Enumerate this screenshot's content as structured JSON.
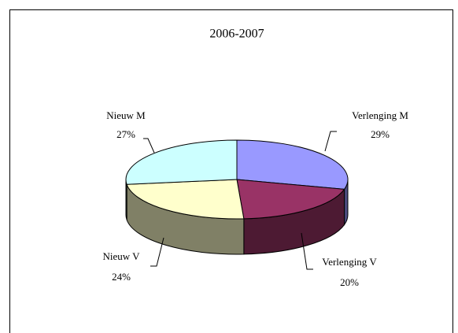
{
  "chart_data": {
    "type": "pie",
    "title": "2006-2007",
    "categories": [
      "Verlenging M",
      "Verlenging V",
      "Nieuw V",
      "Nieuw M"
    ],
    "values": [
      29,
      20,
      24,
      27
    ],
    "value_labels": [
      "29%",
      "20%",
      "24%",
      "27%"
    ],
    "colors": [
      "#9999ff",
      "#993366",
      "#ffffcc",
      "#ccffff"
    ]
  }
}
